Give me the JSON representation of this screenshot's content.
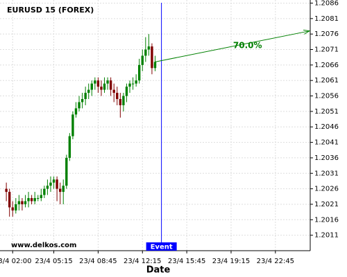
{
  "chart_data": {
    "type": "candlestick",
    "title": "EURUSD 15 (FOREX)",
    "watermark": "www.delkos.com",
    "x_label": "Date",
    "x": [
      1.5,
      1.75,
      2,
      2.25,
      2.5,
      2.75,
      3,
      3.25,
      3.5,
      3.75,
      4,
      4.25,
      4.5,
      4.75,
      5,
      5.25,
      5.5,
      5.75,
      6,
      6.25,
      6.5,
      6.75,
      7,
      7.25,
      7.5,
      7.75,
      8,
      8.25,
      8.5,
      8.75,
      9,
      9.25,
      9.5,
      9.75,
      10,
      10.25,
      10.5,
      10.75,
      11,
      11.25,
      11.5,
      11.75,
      12,
      12.25,
      12.5,
      12.75,
      13,
      13.25
    ],
    "open": [
      1.2026,
      1.2025,
      1.202,
      1.2019,
      1.2021,
      1.2022,
      1.2021,
      1.2022,
      1.2023,
      1.2022,
      1.2023,
      1.2023,
      1.2024,
      1.2026,
      1.2027,
      1.2028,
      1.2029,
      1.2026,
      1.2025,
      1.2027,
      1.2036,
      1.2043,
      1.205,
      1.2052,
      1.2054,
      1.2055,
      1.2057,
      1.2058,
      1.206,
      1.2061,
      1.2059,
      1.2058,
      1.206,
      1.2061,
      1.2058,
      1.2057,
      1.2055,
      1.2053,
      1.2056,
      1.2059,
      1.206,
      1.206,
      1.2061,
      1.2066,
      1.2069,
      1.2071,
      1.2072,
      1.2065
    ],
    "high": [
      1.2028,
      1.2026,
      1.2022,
      1.2023,
      1.2024,
      1.2023,
      1.2024,
      1.2025,
      1.2024,
      1.2025,
      1.2024,
      1.2026,
      1.2027,
      1.2029,
      1.203,
      1.203,
      1.203,
      1.2028,
      1.2029,
      1.2037,
      1.2044,
      1.2051,
      1.2054,
      1.2056,
      1.2057,
      1.2059,
      1.206,
      1.2061,
      1.2062,
      1.2062,
      1.2061,
      1.2062,
      1.2062,
      1.2062,
      1.206,
      1.2059,
      1.2057,
      1.2057,
      1.206,
      1.2061,
      1.2062,
      1.2063,
      1.2068,
      1.2071,
      1.2075,
      1.2076,
      1.2073,
      1.2069
    ],
    "low": [
      1.2022,
      1.2017,
      1.2017,
      1.2018,
      1.2019,
      1.2019,
      1.202,
      1.202,
      1.2021,
      1.2021,
      1.2022,
      1.2022,
      1.2023,
      1.2024,
      1.2025,
      1.2026,
      1.2022,
      1.2021,
      1.2021,
      1.2026,
      1.2035,
      1.2042,
      1.2049,
      1.2051,
      1.2052,
      1.2053,
      1.2055,
      1.2056,
      1.2058,
      1.2057,
      1.2056,
      1.2057,
      1.2058,
      1.2056,
      1.2054,
      1.2053,
      1.2049,
      1.2051,
      1.2054,
      1.2057,
      1.2058,
      1.2059,
      1.206,
      1.2064,
      1.2067,
      1.2069,
      1.2063,
      1.2064
    ],
    "close": [
      1.2025,
      1.202,
      1.2019,
      1.2021,
      1.2022,
      1.2021,
      1.2022,
      1.2023,
      1.2022,
      1.2023,
      1.2023,
      1.2024,
      1.2026,
      1.2027,
      1.2028,
      1.2029,
      1.2026,
      1.2025,
      1.2027,
      1.2036,
      1.2043,
      1.205,
      1.2052,
      1.2054,
      1.2055,
      1.2057,
      1.2058,
      1.206,
      1.2061,
      1.2059,
      1.2058,
      1.206,
      1.2061,
      1.2058,
      1.2057,
      1.2055,
      1.2053,
      1.2056,
      1.2059,
      1.206,
      1.206,
      1.2061,
      1.2066,
      1.2069,
      1.2071,
      1.2072,
      1.2065,
      1.2067
    ],
    "up_color": "#008000",
    "down_color": "#800000",
    "xlim": [
      1.0,
      25.5
    ],
    "xticks": [
      {
        "value": 2,
        "label": "23/4 02:00"
      },
      {
        "value": 5.25,
        "label": "23/4 05:15"
      },
      {
        "value": 8.75,
        "label": "23/4 08:45"
      },
      {
        "value": 12.25,
        "label": "23/4 12:15"
      },
      {
        "value": 15.75,
        "label": "23/4 15:45"
      },
      {
        "value": 19.25,
        "label": "23/4 19:15"
      },
      {
        "value": 22.75,
        "label": "23/4 22:45"
      }
    ],
    "ylim": [
      1.2006,
      1.2087
    ],
    "yticks": [
      1.2011,
      1.2016,
      1.2021,
      1.2026,
      1.2031,
      1.2036,
      1.2041,
      1.2046,
      1.2051,
      1.2056,
      1.2061,
      1.2066,
      1.2071,
      1.2076,
      1.2081,
      1.2086
    ],
    "grid": true,
    "event": {
      "label": "Event",
      "x": 13.75,
      "color": "#0000ff"
    },
    "projection": {
      "label": "70.0%",
      "x": [
        13.25,
        25.5
      ],
      "y": [
        1.2067,
        1.2077
      ],
      "color": "#008000"
    }
  }
}
